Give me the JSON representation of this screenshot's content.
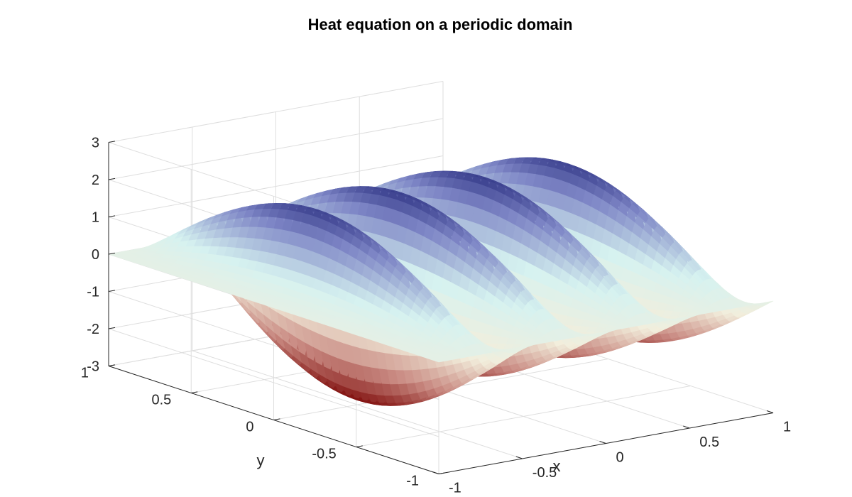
{
  "chart_data": {
    "type": "surface",
    "title": "Heat equation on a periodic domain",
    "xlabel": "x",
    "ylabel": "y",
    "zlabel": "",
    "xlim": [
      -1,
      1
    ],
    "ylim": [
      -1,
      1
    ],
    "zlim": [
      -3,
      3
    ],
    "xticks": [
      -1,
      -0.5,
      0,
      0.5,
      1
    ],
    "xtick_labels": [
      "-1",
      "-0.5",
      "0",
      "0.5",
      "1"
    ],
    "yticks": [
      -1,
      -0.5,
      0,
      0.5,
      1
    ],
    "ytick_labels": [
      "-1",
      "-0.5",
      "0",
      "0.5",
      "1"
    ],
    "zticks": [
      -3,
      -2,
      -1,
      0,
      1,
      2,
      3
    ],
    "ztick_labels": [
      "-3",
      "-2",
      "-1",
      "0",
      "1",
      "2",
      "3"
    ],
    "grid": true,
    "colormap": [
      "#7a0403",
      "#c98a82",
      "#f2eedc",
      "#d6f2f0",
      "#7e86c6",
      "#00035e"
    ],
    "peaks": [
      {
        "x": -0.74,
        "z": 2.45
      },
      {
        "x": -0.24,
        "z": 2.5
      },
      {
        "x": 0.26,
        "z": 2.5
      },
      {
        "x": 0.76,
        "z": 2.45
      }
    ],
    "troughs": [
      {
        "x": -0.5,
        "z": -2.9
      },
      {
        "x": 0.0,
        "z": -2.5
      },
      {
        "x": 0.5,
        "z": -2.4
      },
      {
        "x": 1.0,
        "z": -2.4
      }
    ]
  }
}
